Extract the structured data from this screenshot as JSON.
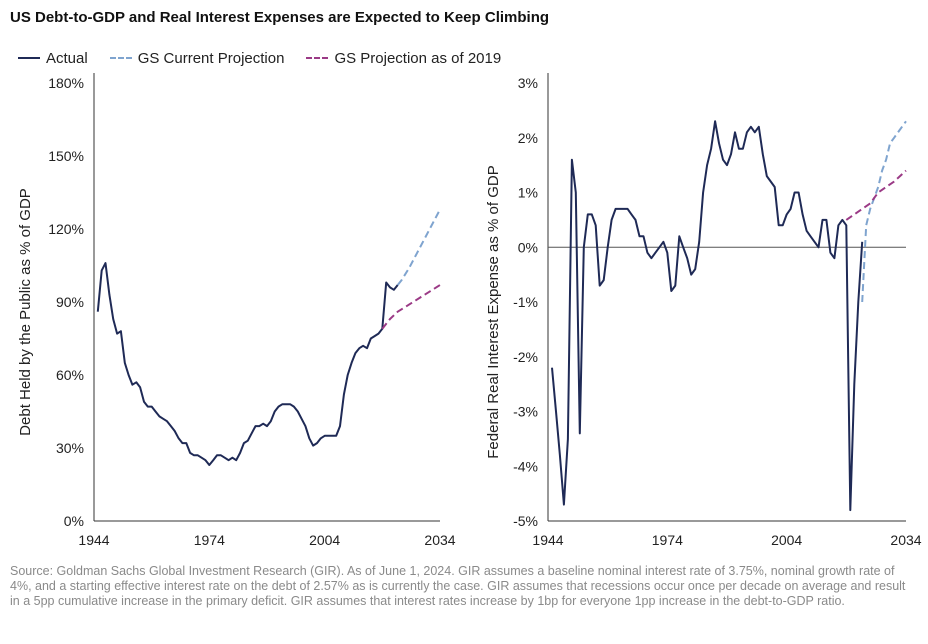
{
  "title": "US Debt-to-GDP and Real Interest Expenses are Expected to Keep Climbing",
  "legend": [
    {
      "label": "Actual",
      "color": "#1f2a56",
      "dash": "solid"
    },
    {
      "label": "GS Current Projection",
      "color": "#7fa4cf",
      "dash": "dashed"
    },
    {
      "label": "GS Projection as of 2019",
      "color": "#9b3a86",
      "dash": "dashed"
    }
  ],
  "source": "Source: Goldman Sachs Global Investment Research (GIR). As of June 1, 2024. GIR assumes a baseline nominal interest rate of 3.75%, nominal growth rate of 4%, and a starting effective interest rate on the debt of 2.57% as is currently the case. GIR assumes that recessions occur once per decade on average and result in a 5pp cumulative increase in the primary deficit. GIR assumes that interest rates increase by 1bp for everyone 1pp increase in the debt-to-GDP ratio.",
  "chart_data": [
    {
      "type": "line",
      "ylabel": "Debt Held by the Public as % of GDP",
      "xlim": [
        1944,
        2034
      ],
      "ylim": [
        0,
        180
      ],
      "xticks": [
        1944,
        1974,
        2004,
        2034
      ],
      "xtick_labels": [
        "1944",
        "1974",
        "2004",
        "2034"
      ],
      "yticks": [
        0,
        30,
        60,
        90,
        120,
        150,
        180
      ],
      "ytick_labels": [
        "0%",
        "30%",
        "60%",
        "90%",
        "120%",
        "150%",
        "180%"
      ],
      "zero_line": false,
      "series": [
        {
          "name": "Actual",
          "color": "#1f2a56",
          "dash": "solid",
          "x": [
            1945,
            1946,
            1947,
            1948,
            1949,
            1950,
            1951,
            1952,
            1953,
            1954,
            1955,
            1956,
            1957,
            1958,
            1959,
            1960,
            1961,
            1962,
            1963,
            1964,
            1965,
            1966,
            1967,
            1968,
            1969,
            1970,
            1971,
            1972,
            1973,
            1974,
            1975,
            1976,
            1977,
            1978,
            1979,
            1980,
            1981,
            1982,
            1983,
            1984,
            1985,
            1986,
            1987,
            1988,
            1989,
            1990,
            1991,
            1992,
            1993,
            1994,
            1995,
            1996,
            1997,
            1998,
            1999,
            2000,
            2001,
            2002,
            2003,
            2004,
            2005,
            2006,
            2007,
            2008,
            2009,
            2010,
            2011,
            2012,
            2013,
            2014,
            2015,
            2016,
            2017,
            2018,
            2019,
            2020,
            2021,
            2022,
            2023
          ],
          "y": [
            86,
            103,
            106,
            93,
            83,
            77,
            78,
            65,
            60,
            56,
            57,
            55,
            49,
            47,
            47,
            45,
            43,
            42,
            41,
            39,
            37,
            34,
            32,
            32,
            28,
            27,
            27,
            26,
            25,
            23,
            25,
            27,
            27,
            26,
            25,
            26,
            25,
            28,
            32,
            33,
            36,
            39,
            39,
            40,
            39,
            41,
            45,
            47,
            48,
            48,
            48,
            47,
            45,
            42,
            39,
            34,
            31,
            32,
            34,
            35,
            35,
            35,
            35,
            39,
            52,
            60,
            65,
            69,
            71,
            72,
            71,
            75,
            76,
            77,
            79,
            98,
            96,
            95,
            97
          ]
        },
        {
          "name": "GS Current Projection",
          "color": "#7fa4cf",
          "dash": "dashed",
          "x": [
            2023,
            2024,
            2026,
            2028,
            2030,
            2032,
            2034
          ],
          "y": [
            97,
            99,
            104,
            110,
            116,
            122,
            128
          ]
        },
        {
          "name": "GS Projection as of 2019",
          "color": "#9b3a86",
          "dash": "dashed",
          "x": [
            2019,
            2021,
            2023,
            2025,
            2027,
            2029,
            2031,
            2034
          ],
          "y": [
            79,
            83,
            86,
            88,
            90,
            92,
            94,
            97
          ]
        }
      ]
    },
    {
      "type": "line",
      "ylabel": "Federal Real Interest Expense as % of GDP",
      "xlim": [
        1944,
        2034
      ],
      "ylim": [
        -5,
        3
      ],
      "xticks": [
        1944,
        1974,
        2004,
        2034
      ],
      "xtick_labels": [
        "1944",
        "1974",
        "2004",
        "2034"
      ],
      "yticks": [
        -5,
        -4,
        -3,
        -2,
        -1,
        0,
        1,
        2,
        3
      ],
      "ytick_labels": [
        "-5%",
        "-4%",
        "-3%",
        "-2%",
        "-1%",
        "0%",
        "1%",
        "2%",
        "3%"
      ],
      "zero_line": true,
      "series": [
        {
          "name": "Actual",
          "color": "#1f2a56",
          "dash": "solid",
          "x": [
            1945,
            1946,
            1947,
            1948,
            1949,
            1950,
            1951,
            1952,
            1953,
            1954,
            1955,
            1956,
            1957,
            1958,
            1959,
            1960,
            1961,
            1962,
            1963,
            1964,
            1965,
            1966,
            1967,
            1968,
            1969,
            1970,
            1971,
            1972,
            1973,
            1974,
            1975,
            1976,
            1977,
            1978,
            1979,
            1980,
            1981,
            1982,
            1983,
            1984,
            1985,
            1986,
            1987,
            1988,
            1989,
            1990,
            1991,
            1992,
            1993,
            1994,
            1995,
            1996,
            1997,
            1998,
            1999,
            2000,
            2001,
            2002,
            2003,
            2004,
            2005,
            2006,
            2007,
            2008,
            2009,
            2010,
            2011,
            2012,
            2013,
            2014,
            2015,
            2016,
            2017,
            2018,
            2019,
            2020,
            2021,
            2022,
            2023
          ],
          "y": [
            -2.2,
            -3.0,
            -3.8,
            -4.7,
            -3.5,
            1.6,
            1.0,
            -3.4,
            0.0,
            0.6,
            0.6,
            0.4,
            -0.7,
            -0.6,
            0.0,
            0.5,
            0.7,
            0.7,
            0.7,
            0.7,
            0.6,
            0.5,
            0.2,
            0.2,
            -0.1,
            -0.2,
            -0.1,
            0.0,
            0.1,
            -0.1,
            -0.8,
            -0.7,
            0.2,
            0.0,
            -0.2,
            -0.5,
            -0.4,
            0.1,
            1.0,
            1.5,
            1.8,
            2.3,
            1.9,
            1.6,
            1.5,
            1.7,
            2.1,
            1.8,
            1.8,
            2.1,
            2.2,
            2.1,
            2.2,
            1.7,
            1.3,
            1.2,
            1.1,
            0.4,
            0.4,
            0.6,
            0.7,
            1.0,
            1.0,
            0.6,
            0.3,
            0.2,
            0.1,
            0.0,
            0.5,
            0.5,
            -0.1,
            -0.2,
            0.4,
            0.5,
            0.4,
            -4.8,
            -2.5,
            -1.0,
            0.1
          ]
        },
        {
          "name": "GS Current Projection",
          "color": "#7fa4cf",
          "dash": "dashed",
          "x": [
            2023,
            2024,
            2025,
            2026,
            2027,
            2028,
            2029,
            2030,
            2031,
            2032,
            2033,
            2034
          ],
          "y": [
            -1.0,
            0.4,
            0.7,
            0.9,
            1.1,
            1.4,
            1.6,
            1.9,
            2.0,
            2.1,
            2.2,
            2.3
          ]
        },
        {
          "name": "GS Projection as of 2019",
          "color": "#9b3a86",
          "dash": "dashed",
          "x": [
            2019,
            2021,
            2023,
            2025,
            2027,
            2029,
            2031,
            2034
          ],
          "y": [
            0.5,
            0.6,
            0.7,
            0.8,
            1.0,
            1.1,
            1.2,
            1.4
          ]
        }
      ]
    }
  ]
}
